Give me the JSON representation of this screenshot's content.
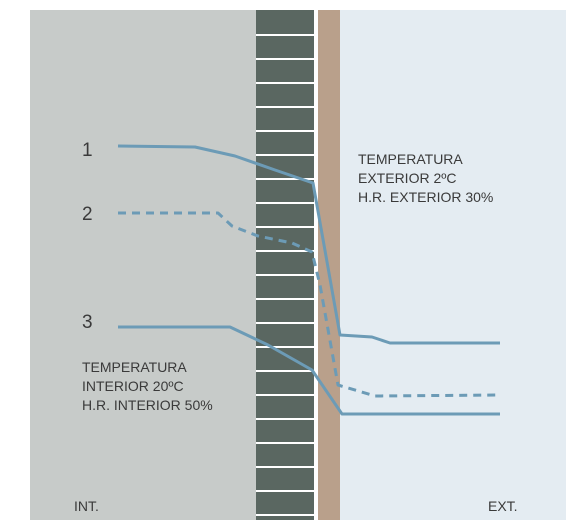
{
  "colors": {
    "interior_zone": "#c7cbc9",
    "exterior_zone": "#e4ecf2",
    "masonry": "#5a6761",
    "mortar": "#ffffff",
    "render_layer": "#b9a08b",
    "curve": "#6c9bb6"
  },
  "curves": [
    {
      "label": "1",
      "style": "solid"
    },
    {
      "label": "2",
      "style": "dashed"
    },
    {
      "label": "3",
      "style": "solid"
    }
  ],
  "interior": {
    "lines": [
      "TEMPERATURA",
      "INTERIOR 20ºC",
      "H.R. INTERIOR 50%"
    ],
    "edge_label": "INT."
  },
  "exterior": {
    "lines": [
      "TEMPERATURA",
      "EXTERIOR 2ºC",
      "H.R. EXTERIOR 30%"
    ],
    "edge_label": "EXT."
  }
}
